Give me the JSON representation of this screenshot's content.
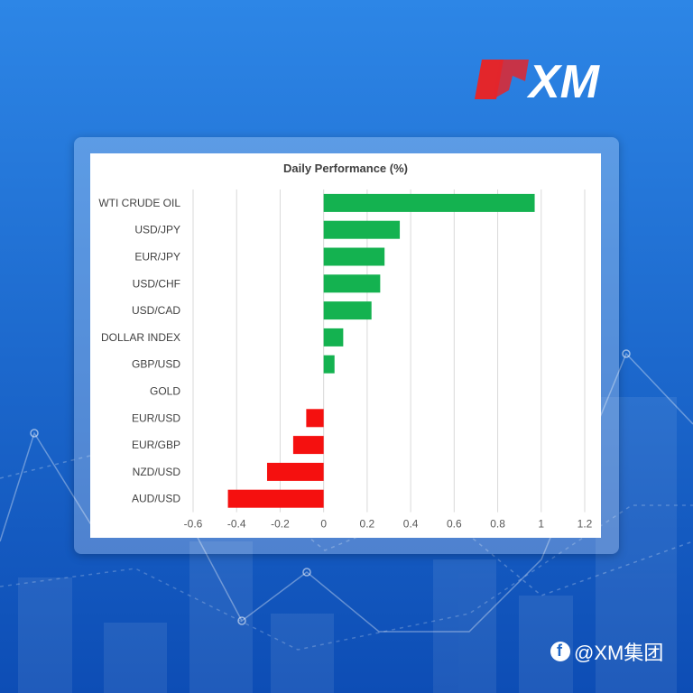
{
  "brand": {
    "logo_text": "XM",
    "logo_color": "#e3262b"
  },
  "watermark": {
    "text": "@XM集团",
    "icon": "social-circle-icon"
  },
  "colors": {
    "positive": "#14b250",
    "negative": "#f5100f",
    "background_top": "#2a7fe0",
    "background_bottom": "#0f4fb8"
  },
  "chart_data": {
    "type": "bar",
    "orientation": "horizontal",
    "title": "Daily Performance (%)",
    "categories": [
      "WTI CRUDE OIL",
      "USD/JPY",
      "EUR/JPY",
      "USD/CHF",
      "USD/CAD",
      "DOLLAR INDEX",
      "GBP/USD",
      "GOLD",
      "EUR/USD",
      "EUR/GBP",
      "NZD/USD",
      "AUD/USD"
    ],
    "values": [
      0.97,
      0.35,
      0.28,
      0.26,
      0.22,
      0.09,
      0.05,
      0.0,
      -0.08,
      -0.14,
      -0.26,
      -0.44
    ],
    "xlim": [
      -0.6,
      1.2
    ],
    "xticks": [
      "-0.6",
      "-0.4",
      "-0.2",
      "0",
      "0.2",
      "0.4",
      "0.6",
      "0.8",
      "1",
      "1.2"
    ],
    "grid": true,
    "legend": "none"
  }
}
